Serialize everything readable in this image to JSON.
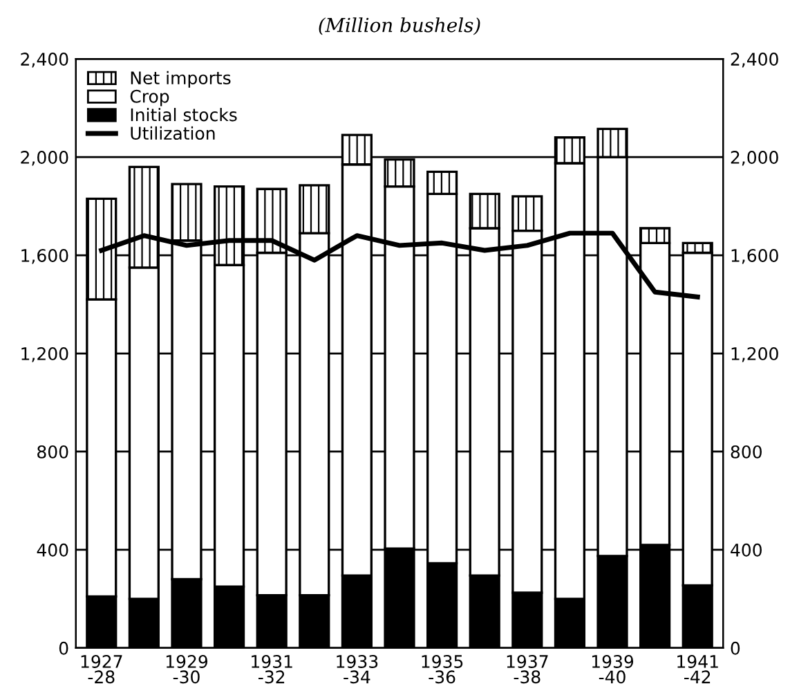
{
  "chart_data": {
    "type": "bar",
    "title": "(Million bushels)",
    "stacked": true,
    "categories": [
      "1927\n-28",
      null,
      "1929\n-30",
      null,
      "1931\n-32",
      null,
      "1933\n-34",
      null,
      "1935\n-36",
      null,
      "1937\n-38",
      null,
      "1939\n-40",
      null,
      "1941\n-42"
    ],
    "series": [
      {
        "name": "Initial stocks",
        "color": "#000000",
        "values": [
          210,
          200,
          280,
          250,
          215,
          215,
          295,
          405,
          345,
          295,
          225,
          200,
          375,
          420,
          255
        ]
      },
      {
        "name": "Crop",
        "color": "#ffffff",
        "values": [
          1210,
          1350,
          1380,
          1310,
          1395,
          1475,
          1675,
          1475,
          1505,
          1415,
          1475,
          1775,
          1625,
          1230,
          1355
        ]
      },
      {
        "name": "Net imports",
        "color": "#000000",
        "values": [
          410,
          410,
          230,
          320,
          260,
          195,
          120,
          110,
          90,
          140,
          140,
          105,
          115,
          60,
          40
        ]
      },
      {
        "name": "Utilization",
        "type": "line",
        "color": "#000000",
        "values": [
          1620,
          1680,
          1640,
          1660,
          1660,
          1580,
          1680,
          1640,
          1650,
          1620,
          1640,
          1690,
          1690,
          1450,
          1430
        ]
      }
    ],
    "ylim": [
      0,
      2400
    ],
    "yticks": [
      0,
      400,
      800,
      {
        "value": 1200,
        "label": "1,200"
      },
      {
        "value": 1600,
        "label": "1,600"
      },
      {
        "value": 2000,
        "label": "2,000"
      },
      {
        "value": 2400,
        "label": "2,400"
      }
    ],
    "y2lim": [
      0,
      2400
    ],
    "y2ticks": [
      0,
      400,
      800,
      {
        "value": 1200,
        "label": "1,200"
      },
      {
        "value": 1600,
        "label": "1,600"
      },
      {
        "value": 2000,
        "label": "2,000"
      },
      {
        "value": 2400,
        "label": "2,400"
      }
    ],
    "grid": "y",
    "legend": "top left"
  }
}
